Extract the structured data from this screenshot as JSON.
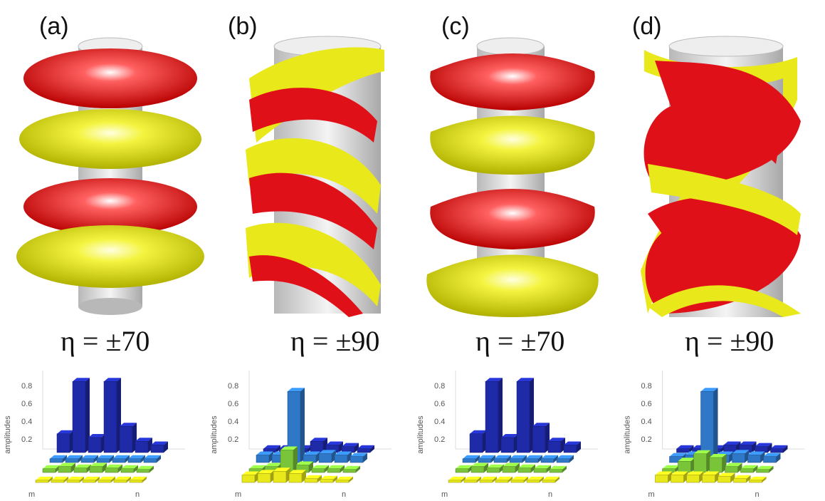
{
  "figure": {
    "colors": {
      "red": "#e01018",
      "yellow": "#e8e81a",
      "cylinder": "#d8d8d8"
    },
    "panels": [
      {
        "label": "(a)",
        "eta": "η = ±70",
        "style": "rings"
      },
      {
        "label": "(b)",
        "eta": "η = ±90",
        "style": "helix"
      },
      {
        "label": "(c)",
        "eta": "η = ±70",
        "style": "rings"
      },
      {
        "label": "(d)",
        "eta": "η = ±90",
        "style": "braid"
      }
    ]
  },
  "chart_data": [
    {
      "type": "bar3d",
      "ylabel": "amplitudes",
      "yticks": [
        "0.8",
        "0.6",
        "0.4",
        "0.2"
      ],
      "xlabel": "n",
      "zlabel": "m",
      "bars": [
        {
          "color": "#1f2aa8",
          "values": [
            0.25,
            0.95,
            0.2,
            0.95,
            0.35,
            0.15,
            0.1
          ]
        },
        {
          "color": "#2f78c8",
          "values": [
            0.05,
            0.05,
            0.05,
            0.05,
            0.05,
            0.05,
            0.05
          ]
        },
        {
          "color": "#7ac43a",
          "values": [
            0.05,
            0.08,
            0.06,
            0.08,
            0.06,
            0.05,
            0.04
          ]
        },
        {
          "color": "#e8e81a",
          "values": [
            0.03,
            0.03,
            0.03,
            0.03,
            0.03,
            0.03,
            0.03
          ]
        }
      ]
    },
    {
      "type": "bar3d",
      "ylabel": "amplitudes",
      "yticks": [
        "0.8",
        "0.6",
        "0.4",
        "0.2"
      ],
      "xlabel": "n",
      "zlabel": "m",
      "bars": [
        {
          "color": "#1f2aa8",
          "values": [
            0.05,
            0.05,
            0.05,
            0.15,
            0.1,
            0.08,
            0.05
          ]
        },
        {
          "color": "#2f78c8",
          "values": [
            0.1,
            0.1,
            0.95,
            0.1,
            0.12,
            0.1,
            0.08
          ]
        },
        {
          "color": "#7ac43a",
          "values": [
            0.05,
            0.08,
            0.3,
            0.1,
            0.05,
            0.05,
            0.04
          ]
        },
        {
          "color": "#e8e81a",
          "values": [
            0.1,
            0.12,
            0.15,
            0.12,
            0.05,
            0.04,
            0.03
          ]
        }
      ]
    },
    {
      "type": "bar3d",
      "ylabel": "amplitudes",
      "yticks": [
        "0.8",
        "0.6",
        "0.4",
        "0.2"
      ],
      "xlabel": "n",
      "zlabel": "m",
      "bars": [
        {
          "color": "#1f2aa8",
          "values": [
            0.25,
            0.95,
            0.2,
            0.95,
            0.35,
            0.15,
            0.1
          ]
        },
        {
          "color": "#2f78c8",
          "values": [
            0.05,
            0.05,
            0.05,
            0.05,
            0.05,
            0.05,
            0.05
          ]
        },
        {
          "color": "#7ac43a",
          "values": [
            0.05,
            0.08,
            0.06,
            0.08,
            0.06,
            0.05,
            0.04
          ]
        },
        {
          "color": "#e8e81a",
          "values": [
            0.03,
            0.03,
            0.03,
            0.03,
            0.03,
            0.03,
            0.03
          ]
        }
      ]
    },
    {
      "type": "bar3d",
      "ylabel": "amplitudes",
      "yticks": [
        "0.8",
        "0.6",
        "0.4",
        "0.2"
      ],
      "xlabel": "n",
      "zlabel": "m",
      "bars": [
        {
          "color": "#1f2aa8",
          "values": [
            0.05,
            0.05,
            0.05,
            0.1,
            0.1,
            0.08,
            0.05
          ]
        },
        {
          "color": "#2f78c8",
          "values": [
            0.08,
            0.1,
            0.95,
            0.1,
            0.12,
            0.1,
            0.08
          ]
        },
        {
          "color": "#7ac43a",
          "values": [
            0.05,
            0.15,
            0.25,
            0.2,
            0.08,
            0.05,
            0.04
          ]
        },
        {
          "color": "#e8e81a",
          "values": [
            0.1,
            0.1,
            0.1,
            0.1,
            0.08,
            0.05,
            0.03
          ]
        }
      ]
    }
  ]
}
